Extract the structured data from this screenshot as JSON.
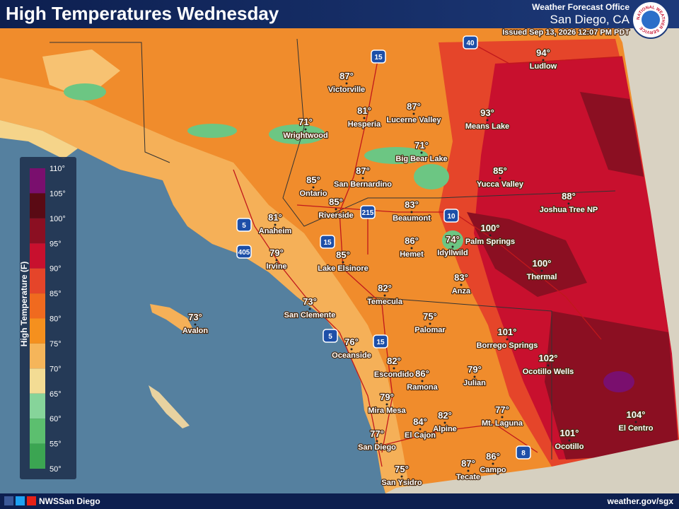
{
  "header": {
    "title": "High Temperatures Wednesday",
    "office": "Weather Forecast Office",
    "location": "San Diego, CA",
    "issued": "Issued Sep 13, 2026 12:07 PM PDT",
    "logo": "NATIONAL WEATHER SERVICE"
  },
  "legend": {
    "title": "High Temperature (F)",
    "ticks": [
      "110°",
      "105°",
      "100°",
      "95°",
      "90°",
      "85°",
      "80°",
      "75°",
      "70°",
      "65°",
      "60°",
      "55°",
      "50°"
    ]
  },
  "cities": [
    {
      "name": "Ludlow",
      "temp": "94°"
    },
    {
      "name": "Victorville",
      "temp": "87°"
    },
    {
      "name": "Hesperia",
      "temp": "81°"
    },
    {
      "name": "Lucerne Valley",
      "temp": "87°"
    },
    {
      "name": "Means Lake",
      "temp": "93°"
    },
    {
      "name": "Wrightwood",
      "temp": "71°"
    },
    {
      "name": "Big Bear Lake",
      "temp": "71°"
    },
    {
      "name": "San Bernardino",
      "temp": "87°"
    },
    {
      "name": "Yucca Valley",
      "temp": "85°"
    },
    {
      "name": "Ontario",
      "temp": "85°"
    },
    {
      "name": "Joshua Tree NP",
      "temp": "88°"
    },
    {
      "name": "Riverside",
      "temp": "85°"
    },
    {
      "name": "Beaumont",
      "temp": "83°"
    },
    {
      "name": "Anaheim",
      "temp": "81°"
    },
    {
      "name": "Palm Springs",
      "temp": "100°"
    },
    {
      "name": "Hemet",
      "temp": "86°"
    },
    {
      "name": "Idyllwild",
      "temp": "74°"
    },
    {
      "name": "Irvine",
      "temp": "79°"
    },
    {
      "name": "Lake Elsinore",
      "temp": "85°"
    },
    {
      "name": "Thermal",
      "temp": "100°"
    },
    {
      "name": "Anza",
      "temp": "83°"
    },
    {
      "name": "Temecula",
      "temp": "82°"
    },
    {
      "name": "San Clemente",
      "temp": "73°"
    },
    {
      "name": "Avalon",
      "temp": "73°"
    },
    {
      "name": "Palomar",
      "temp": "75°"
    },
    {
      "name": "Borrego Springs",
      "temp": "101°"
    },
    {
      "name": "Oceanside",
      "temp": "76°"
    },
    {
      "name": "Ocotillo Wells",
      "temp": "102°"
    },
    {
      "name": "Escondido",
      "temp": "82°"
    },
    {
      "name": "Ramona",
      "temp": "86°"
    },
    {
      "name": "Julian",
      "temp": "79°"
    },
    {
      "name": "Mira Mesa",
      "temp": "79°"
    },
    {
      "name": "Alpine",
      "temp": "82°"
    },
    {
      "name": "Mt. Laguna",
      "temp": "77°"
    },
    {
      "name": "El Cajon",
      "temp": "84°"
    },
    {
      "name": "El Centro",
      "temp": "104°"
    },
    {
      "name": "San Diego",
      "temp": "77°"
    },
    {
      "name": "Ocotillo",
      "temp": "101°"
    },
    {
      "name": "Tecate",
      "temp": "87°"
    },
    {
      "name": "Campo",
      "temp": "86°"
    },
    {
      "name": "San Ysidro",
      "temp": "75°"
    }
  ],
  "highways": [
    "40",
    "15",
    "10",
    "215",
    "5",
    "405",
    "15",
    "5",
    "15",
    "8"
  ],
  "footer": {
    "handle": "NWSSan Diego",
    "url": "weather.gov/sgx"
  }
}
